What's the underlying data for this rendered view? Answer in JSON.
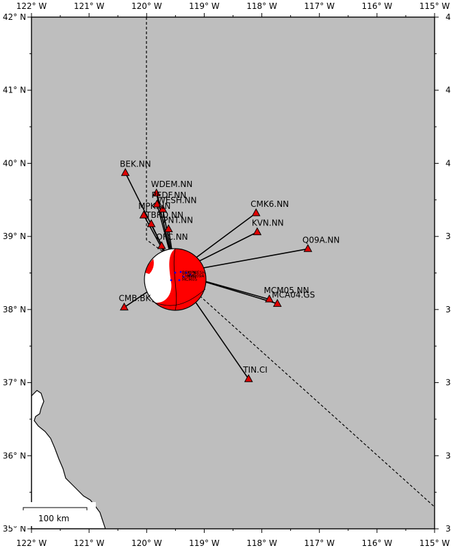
{
  "map": {
    "extent": {
      "lon_min": -122,
      "lon_max": -115,
      "lat_min": 35,
      "lat_max": 42
    },
    "background_color": "#bebebe",
    "ocean_color": "#ffffff",
    "lon_ticks": [
      {
        "value": -122,
        "label": "122° W"
      },
      {
        "value": -121,
        "label": "121° W"
      },
      {
        "value": -120,
        "label": "120° W"
      },
      {
        "value": -119,
        "label": "119° W"
      },
      {
        "value": -118,
        "label": "118° W"
      },
      {
        "value": -117,
        "label": "117° W"
      },
      {
        "value": -116,
        "label": "116° W"
      },
      {
        "value": -115,
        "label": "115° W"
      }
    ],
    "lat_ticks": [
      {
        "value": 42,
        "label": "42° N"
      },
      {
        "value": 41,
        "label": "41° N"
      },
      {
        "value": 40,
        "label": "40° N"
      },
      {
        "value": 39,
        "label": "39° N"
      },
      {
        "value": 38,
        "label": "38° N"
      },
      {
        "value": 37,
        "label": "37° N"
      },
      {
        "value": 36,
        "label": "36° N"
      },
      {
        "value": 35,
        "label": "35° N"
      }
    ],
    "scale_bar_label": "100 km",
    "event": {
      "lon": -119.5,
      "lat": 38.5
    },
    "beachball": {
      "compression_color": "#ff0000",
      "tension_color": "#ffffff"
    },
    "stations": [
      {
        "name": "BEK.NN",
        "lon": -120.37,
        "lat": 39.87
      },
      {
        "name": "WDEM.NN",
        "lon": -119.83,
        "lat": 39.59
      },
      {
        "name": "PEDF.NN",
        "lon": -119.82,
        "lat": 39.44
      },
      {
        "name": "WESH.NN",
        "lon": -119.72,
        "lat": 39.37
      },
      {
        "name": "MPK.NN",
        "lon": -120.05,
        "lat": 39.29
      },
      {
        "name": "TBRD.NN",
        "lon": -119.92,
        "lat": 39.17
      },
      {
        "name": "PNT.NN",
        "lon": -119.62,
        "lat": 39.1
      },
      {
        "name": "OFC.NN",
        "lon": -119.74,
        "lat": 38.87
      },
      {
        "name": "CMK6.NN",
        "lon": -118.1,
        "lat": 39.32
      },
      {
        "name": "KVN.NN",
        "lon": -118.08,
        "lat": 39.06
      },
      {
        "name": "Q09A.NN",
        "lon": -117.2,
        "lat": 38.83
      },
      {
        "name": "MCM05.NN",
        "lon": -117.87,
        "lat": 38.14
      },
      {
        "name": "MCA04.GS",
        "lon": -117.73,
        "lat": 38.08
      },
      {
        "name": "CMB.BK",
        "lon": -120.39,
        "lat": 38.03
      },
      {
        "name": "TIN.CI",
        "lon": -118.23,
        "lat": 37.05
      }
    ],
    "inner_labels": [
      "BEK",
      "MPK",
      "WESH",
      "CMK6",
      "KVN",
      "Q09A",
      "MCM05"
    ]
  }
}
